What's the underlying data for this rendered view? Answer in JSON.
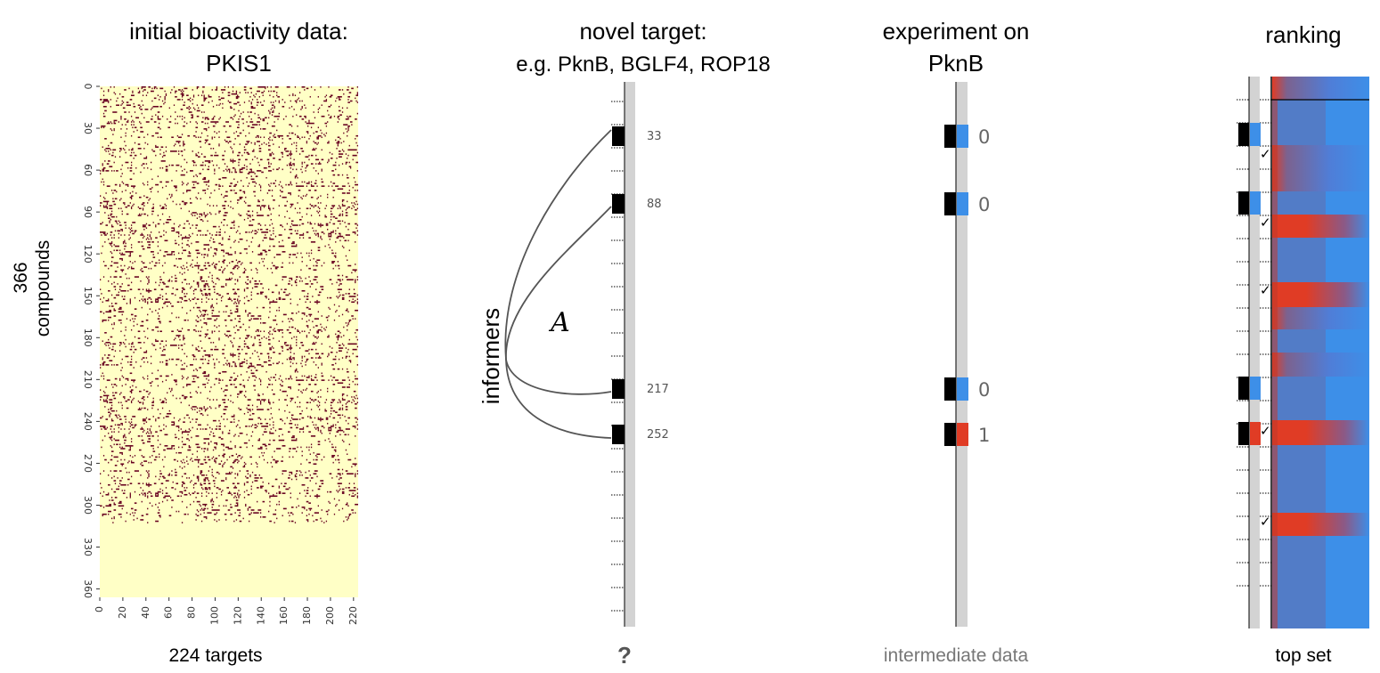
{
  "panels": {
    "initial": {
      "title_line1": "initial bioactivity data:",
      "title_line2": "PKIS1",
      "xlabel": "224 targets",
      "ylabel_line1": "366",
      "ylabel_line2": "compounds"
    },
    "novel": {
      "title_line1": "novel target:",
      "title_line2": "e.g. PknB, BGLF4, ROP18",
      "bottom": "?",
      "informers_label": "informers",
      "math_label": "A"
    },
    "experiment": {
      "title_line1": "experiment on",
      "title_line2": "PknB",
      "bottom": "intermediate data"
    },
    "ranking": {
      "title": "ranking",
      "bottom": "top set"
    }
  },
  "heatmap": {
    "x_ticks": [
      "0",
      "20",
      "40",
      "60",
      "80",
      "100",
      "120",
      "140",
      "160",
      "180",
      "200",
      "220"
    ],
    "y_ticks": [
      "0",
      "30",
      "60",
      "90",
      "120",
      "150",
      "180",
      "210",
      "240",
      "270",
      "300",
      "330",
      "360"
    ],
    "color_inactive": "#ffffc6",
    "color_active": "#67001f"
  },
  "informers": [
    {
      "index": "33",
      "value": "0",
      "active": false
    },
    {
      "index": "88",
      "value": "0",
      "active": false
    },
    {
      "index": "217",
      "value": "0",
      "active": false
    },
    {
      "index": "252",
      "value": "1",
      "active": true
    }
  ],
  "colors": {
    "blue": "#3d8fe8",
    "red": "#e03c25",
    "black": "#000000",
    "track": "#d3d3d3",
    "curve": "#555555"
  },
  "ranking_checks": {
    "count": 5,
    "symbol": "✓"
  }
}
